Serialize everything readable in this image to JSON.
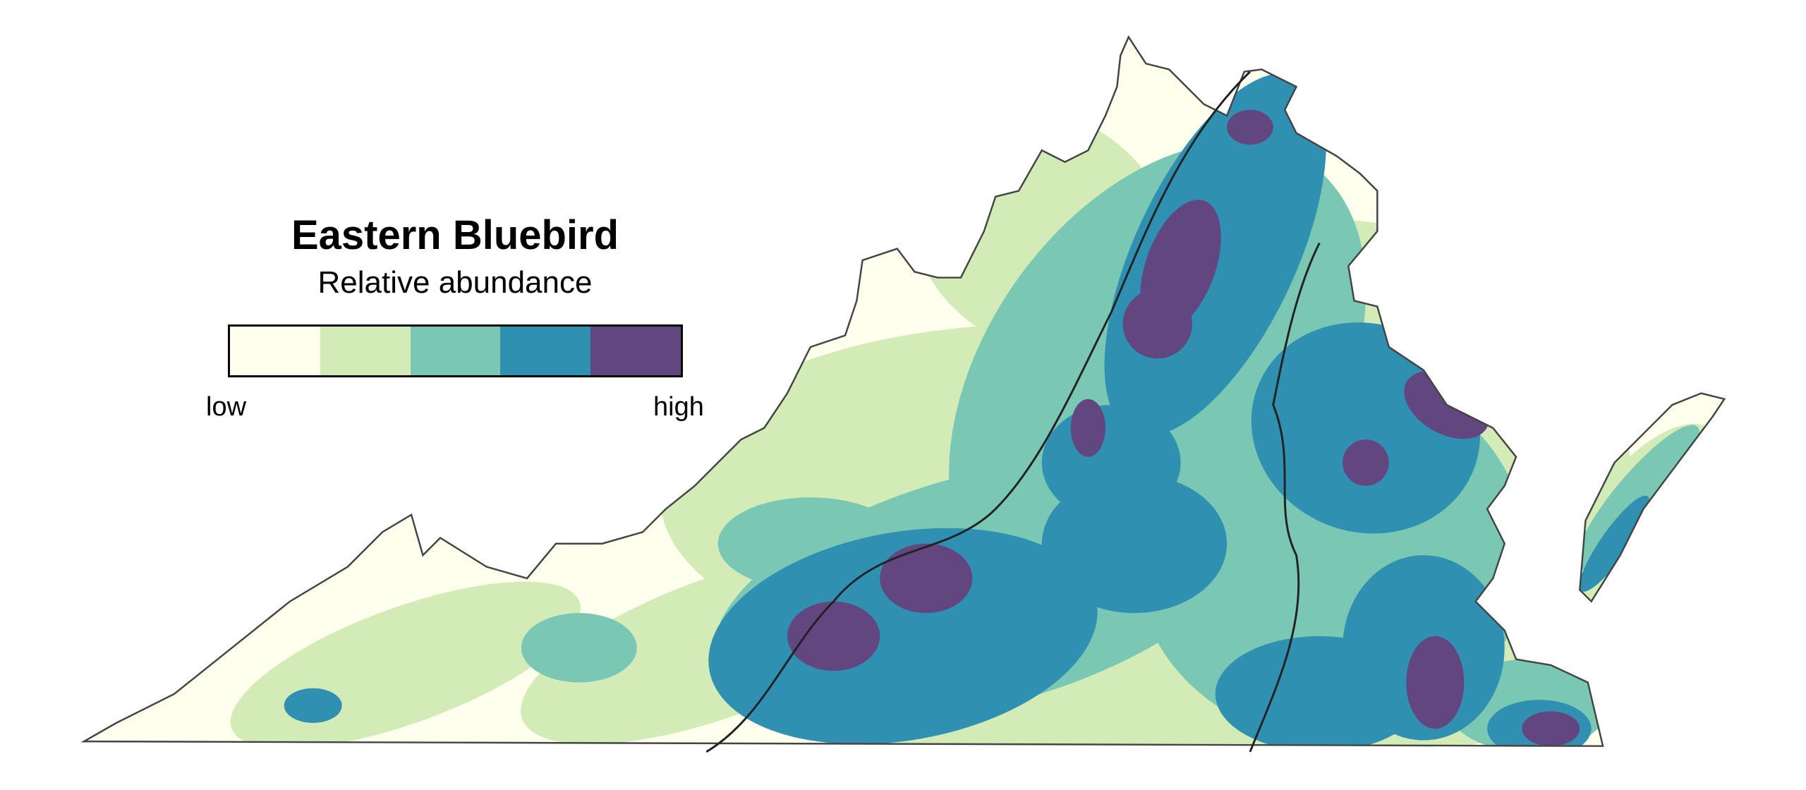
{
  "legend": {
    "title": "Eastern Bluebird",
    "subtitle": "Relative abundance",
    "low_label": "low",
    "high_label": "high",
    "colors": [
      "#ffffee",
      "#d3ebb6",
      "#7ac8b4",
      "#3090b2",
      "#62467f"
    ]
  },
  "map": {
    "region": "Virginia",
    "outline_color": "#444444",
    "county_line_color": "#888888"
  }
}
